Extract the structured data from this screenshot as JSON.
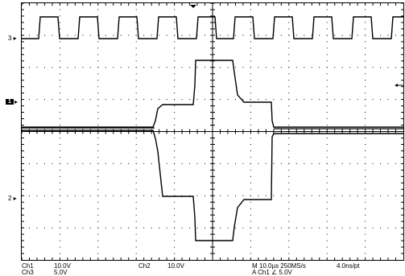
{
  "markers": {
    "ch3": "3",
    "ch1": "1",
    "ch2": "2"
  },
  "status": {
    "ch1_label": "Ch1",
    "ch1_scale": "10.0V",
    "ch2_label": "Ch2",
    "ch2_scale": "10.0V",
    "ch3_label": "Ch3",
    "ch3_scale": "5.0V",
    "timebase": "M 10.0µs 250MS/s",
    "record": "4.0ns/pt",
    "trigger": "A  Ch1  ∠  5.0V"
  },
  "colors": {
    "background": "#ffffff",
    "grid": "#000000",
    "trace": "#000000"
  }
}
